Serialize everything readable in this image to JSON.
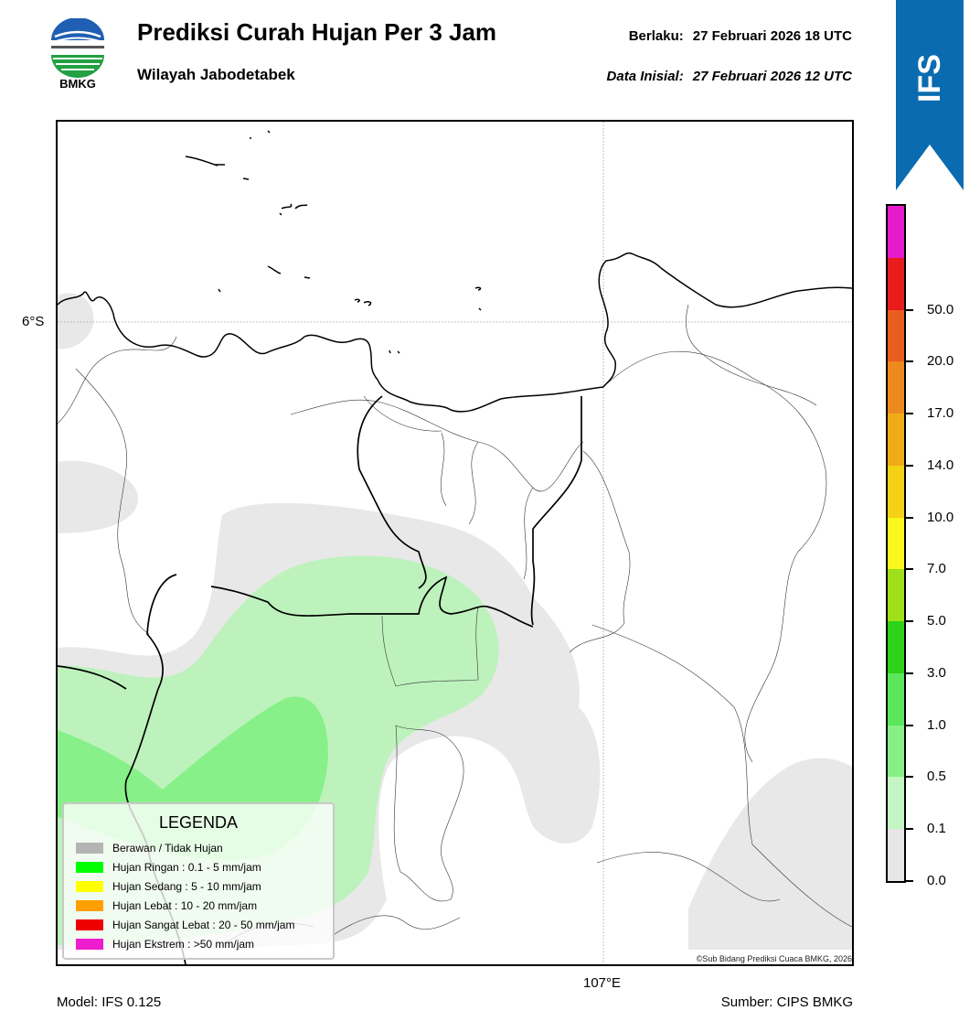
{
  "header": {
    "logo_text": "BMKG",
    "title": "Prediksi Curah Hujan Per 3 Jam",
    "subtitle": "Wilayah Jabodetabek",
    "valid_label": "Berlaku:",
    "valid_value": "27 Februari 2026 18 UTC",
    "init_label": "Data Inisial:",
    "init_value": "27 Februari 2026 12 UTC"
  },
  "badge": {
    "text": "IFS",
    "color": "#0a6bb0"
  },
  "map": {
    "lat_label": "6°S",
    "lon_label": "107°E",
    "credit": "©Sub Bidang Prediksi Cuaca BMKG, 2026"
  },
  "legend": {
    "title": "LEGENDA",
    "items": [
      {
        "label": "Berawan / Tidak Hujan",
        "color": "#b4b4b4"
      },
      {
        "label": "Hujan Ringan : 0.1 - 5 mm/jam",
        "color": "#00ff00"
      },
      {
        "label": "Hujan Sedang : 5 - 10 mm/jam",
        "color": "#ffff00"
      },
      {
        "label": "Hujan Lebat : 10 - 20 mm/jam",
        "color": "#ffa000"
      },
      {
        "label": "Hujan Sangat Lebat : 20 - 50 mm/jam",
        "color": "#ee0000"
      },
      {
        "label": "Hujan Ekstrem : >50 mm/jam",
        "color": "#ee1ccc"
      }
    ]
  },
  "colorbar": {
    "ticks": [
      "0.0",
      "0.1",
      "0.5",
      "1.0",
      "3.0",
      "5.0",
      "7.0",
      "10.0",
      "14.0",
      "17.0",
      "20.0",
      "50.0"
    ],
    "colors_bottom_to_top": [
      "#e6e6e6",
      "#c4f5c4",
      "#86f086",
      "#5ce65c",
      "#2ed21a",
      "#9ee01a",
      "#f8f81c",
      "#f4d016",
      "#f0ac18",
      "#ec8a1e",
      "#e85e1e",
      "#e81c1c",
      "#e61ccc"
    ]
  },
  "footer": {
    "model": "Model: IFS 0.125",
    "source": "Sumber: CIPS BMKG"
  }
}
